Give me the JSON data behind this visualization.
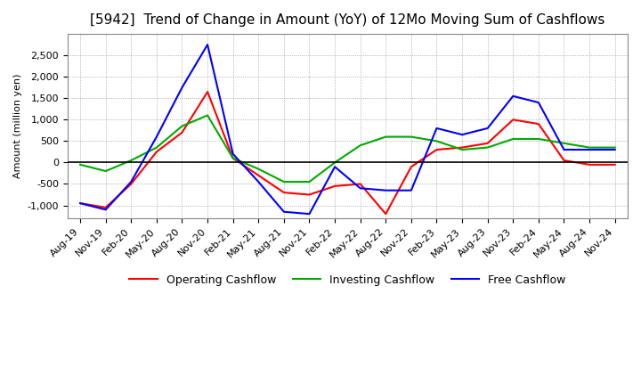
{
  "title": "[5942]  Trend of Change in Amount (YoY) of 12Mo Moving Sum of Cashflows",
  "ylabel": "Amount (million yen)",
  "xlabels": [
    "Aug-19",
    "Nov-19",
    "Feb-20",
    "May-20",
    "Aug-20",
    "Nov-20",
    "Feb-21",
    "May-21",
    "Aug-21",
    "Nov-21",
    "Feb-22",
    "May-22",
    "Aug-22",
    "Nov-22",
    "Feb-23",
    "May-23",
    "Aug-23",
    "Nov-23",
    "Feb-24",
    "May-24",
    "Aug-24",
    "Nov-24"
  ],
  "operating": [
    -950,
    -1050,
    -500,
    250,
    700,
    1650,
    100,
    -300,
    -700,
    -750,
    -550,
    -500,
    -1200,
    -100,
    300,
    350,
    450,
    1000,
    900,
    50,
    -50,
    -50
  ],
  "investing": [
    -50,
    -200,
    50,
    350,
    850,
    1100,
    100,
    -150,
    -450,
    -450,
    0,
    400,
    600,
    600,
    500,
    300,
    350,
    550,
    550,
    450,
    350,
    350
  ],
  "free": [
    -950,
    -1100,
    -450,
    600,
    1750,
    2750,
    200,
    -450,
    -1150,
    -1200,
    -100,
    -600,
    -650,
    -650,
    800,
    650,
    800,
    1550,
    1400,
    300,
    300,
    300
  ],
  "operating_color": "#ff0000",
  "investing_color": "#00aa00",
  "free_color": "#0000ff",
  "ylim": [
    -1300,
    3000
  ],
  "yticks": [
    -1000,
    -500,
    0,
    500,
    1000,
    1500,
    2000,
    2500
  ],
  "bg_color": "#ffffff",
  "grid_color": "#999999",
  "zero_line_color": "#000000",
  "title_fontsize": 11,
  "axis_fontsize": 8,
  "legend_fontsize": 9
}
